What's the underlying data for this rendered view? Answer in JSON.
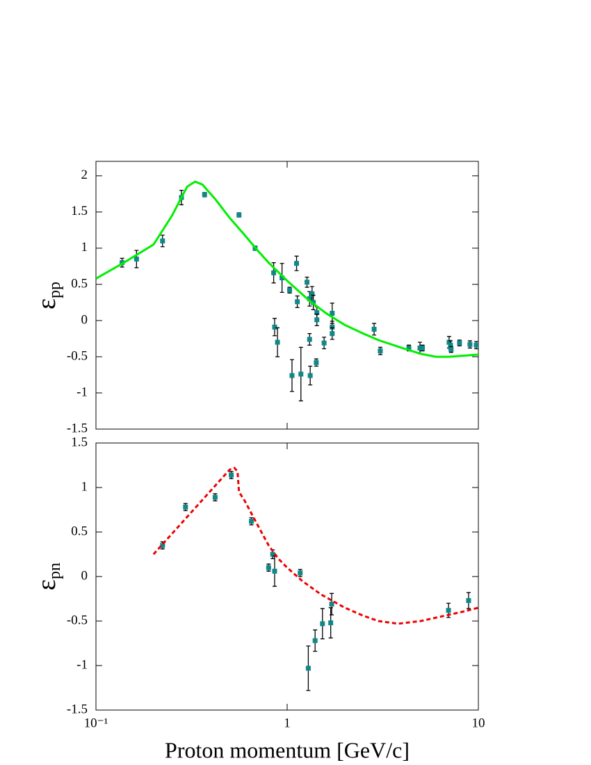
{
  "chart_data": [
    {
      "type": "scatter",
      "ylabel": "ε",
      "ylabel_sub": "pp",
      "log_x": true,
      "xlim": [
        0.1,
        10
      ],
      "ylim": [
        -1.5,
        2.2
      ],
      "yticks": [
        2,
        1.5,
        1,
        0.5,
        0,
        -0.5,
        -1,
        -1.5
      ],
      "series": [
        {
          "type": "points",
          "color": "#108888",
          "error_color": "#000000",
          "x": [
            0.137,
            0.163,
            0.223,
            0.28,
            0.37,
            0.56,
            0.68,
            0.85,
            0.86,
            0.89,
            0.94,
            1.03,
            1.06,
            1.12,
            1.13,
            1.18,
            1.27,
            1.31,
            1.31,
            1.32,
            1.35,
            1.37,
            1.42,
            1.43,
            1.43,
            1.56,
            1.72,
            1.72,
            1.72,
            2.85,
            3.07,
            4.33,
            4.95,
            5.1,
            7.03,
            7.15,
            7.2,
            7.97,
            9.04,
            9.75
          ],
          "values": [
            0.8,
            0.85,
            1.1,
            1.7,
            1.74,
            1.46,
            1.0,
            0.66,
            -0.09,
            -0.3,
            0.59,
            0.42,
            -0.76,
            0.79,
            0.26,
            -0.74,
            0.53,
            0.3,
            -0.26,
            -0.76,
            0.37,
            0.25,
            -0.58,
            0.11,
            0.01,
            -0.31,
            0.1,
            -0.09,
            -0.18,
            -0.12,
            -0.42,
            -0.38,
            -0.38,
            -0.38,
            -0.3,
            -0.34,
            -0.4,
            -0.31,
            -0.33,
            -0.34
          ],
          "errors": [
            0.06,
            0.12,
            0.08,
            0.1,
            0.03,
            0.03,
            0.03,
            0.14,
            0.12,
            0.2,
            0.2,
            0.04,
            0.22,
            0.1,
            0.08,
            0.37,
            0.07,
            0.1,
            0.08,
            0.13,
            0.1,
            0.1,
            0.05,
            0.08,
            0.08,
            0.08,
            0.14,
            0.08,
            0.08,
            0.08,
            0.05,
            0.04,
            0.08,
            0.04,
            0.08,
            0.06,
            0.04,
            0.04,
            0.05,
            0.05
          ]
        },
        {
          "type": "line",
          "color": "#00ee00",
          "dashed": false,
          "x": [
            0.1,
            0.14,
            0.2,
            0.25,
            0.28,
            0.3,
            0.33,
            0.36,
            0.42,
            0.5,
            0.6,
            0.7,
            0.8,
            1.0,
            1.3,
            1.6,
            2.0,
            2.5,
            3.0,
            4.0,
            5.0,
            6.0,
            7.0,
            8.0,
            10
          ],
          "values": [
            0.58,
            0.8,
            1.05,
            1.45,
            1.7,
            1.85,
            1.92,
            1.88,
            1.68,
            1.42,
            1.18,
            0.97,
            0.8,
            0.55,
            0.28,
            0.1,
            -0.06,
            -0.18,
            -0.27,
            -0.38,
            -0.46,
            -0.5,
            -0.5,
            -0.49,
            -0.47
          ]
        }
      ]
    },
    {
      "type": "scatter",
      "ylabel": "ε",
      "ylabel_sub": "pn",
      "xlabel": "Proton momentum [GeV/c]",
      "log_x": true,
      "xlim": [
        0.1,
        10
      ],
      "xticks": [
        {
          "value": 0.1,
          "label": "10⁻¹"
        },
        1,
        10
      ],
      "ylim": [
        -1.5,
        1.5
      ],
      "yticks": [
        1.5,
        1,
        0.5,
        0,
        -0.5,
        -1,
        -1.5
      ],
      "series": [
        {
          "type": "points",
          "color": "#108888",
          "error_color": "#000000",
          "x": [
            0.223,
            0.294,
            0.42,
            0.51,
            0.65,
            0.8,
            0.84,
            0.86,
            1.17,
            1.29,
            1.4,
            1.53,
            1.69,
            1.71,
            6.98,
            8.89
          ],
          "values": [
            0.35,
            0.78,
            0.89,
            1.14,
            0.62,
            0.1,
            0.25,
            0.06,
            0.04,
            -1.03,
            -0.72,
            -0.53,
            -0.52,
            -0.31,
            -0.38,
            -0.27
          ],
          "errors": [
            0.04,
            0.04,
            0.04,
            0.04,
            0.04,
            0.04,
            0.05,
            0.17,
            0.04,
            0.25,
            0.12,
            0.17,
            0.17,
            0.12,
            0.08,
            0.09
          ]
        },
        {
          "type": "line",
          "color": "#ee0000",
          "dashed": true,
          "x": [
            0.2,
            0.5,
            0.53,
            0.55,
            0.56,
            0.6,
            0.7,
            0.8,
            0.9,
            1.0,
            1.2,
            1.5,
            2.0,
            2.5,
            3.0,
            3.8,
            5.0,
            7.0,
            8.5,
            10
          ],
          "values": [
            0.25,
            1.2,
            1.22,
            1.18,
            0.95,
            0.85,
            0.58,
            0.35,
            0.2,
            0.1,
            -0.05,
            -0.2,
            -0.35,
            -0.44,
            -0.5,
            -0.53,
            -0.5,
            -0.43,
            -0.39,
            -0.35
          ]
        }
      ]
    }
  ]
}
